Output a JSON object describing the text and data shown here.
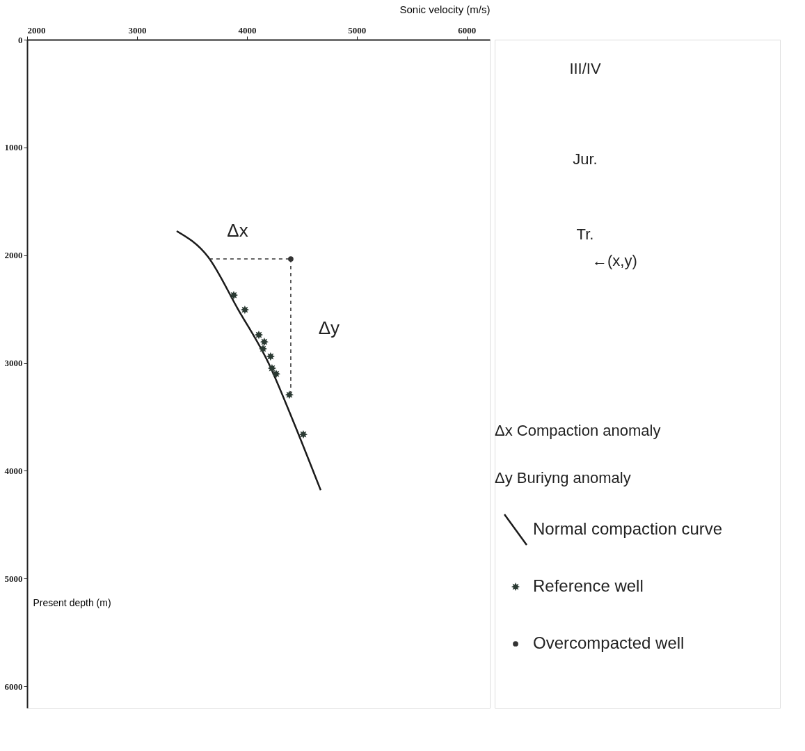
{
  "chart_data": {
    "type": "scatter",
    "xlabel": "Sonic velocity  (m/s)",
    "ylabel": "Present depth (m)",
    "xlim": [
      2000,
      6210
    ],
    "xticks": [
      2000,
      3000,
      4000,
      5000,
      6000
    ],
    "ylim": [
      6200,
      0
    ],
    "yticks": [
      0,
      1000,
      2000,
      3000,
      4000,
      5000,
      6000
    ],
    "grid": false,
    "legend": "right",
    "series": [
      {
        "name": "Normal compaction curve",
        "type": "line",
        "color": "#1a1a1a",
        "marker": "none",
        "line_style": "solid",
        "x": [
          3361,
          3646,
          3918,
          4196,
          4405,
          4671
        ],
        "values": [
          1776,
          2015,
          2500,
          3000,
          3500,
          4180
        ]
      },
      {
        "type": "line",
        "color": "#333333",
        "marker": "none",
        "line_style": "dashed",
        "x": [
          3658,
          4399
        ],
        "values": [
          2035,
          2035
        ]
      },
      {
        "type": "line",
        "color": "#333333",
        "marker": "none",
        "line_style": "dashed",
        "x": [
          4399,
          4399
        ],
        "values": [
          2035,
          3320
        ]
      },
      {
        "name": "Reference well",
        "marker": "star",
        "color": "#2b3a33",
        "x": [
          3880,
          3981,
          4108,
          4158,
          4146,
          4215,
          4228,
          4266,
          4386,
          4513
        ],
        "values": [
          2371,
          2506,
          2739,
          2804,
          2868,
          2939,
          3049,
          3101,
          3295,
          3663
        ]
      },
      {
        "name": "Overcompacted well",
        "marker": "circle",
        "color": "#333333",
        "x": [
          4399
        ],
        "values": [
          2035
        ]
      }
    ],
    "annotations": [
      {
        "text": "Δx",
        "x": 4029,
        "y": 2035
      },
      {
        "text": "Δy",
        "x": 4399,
        "y": 2680
      },
      "III/IV",
      "Jur.",
      "Tr.",
      "←(x,y)",
      "Δx Compaction anomaly",
      "Δy Buriyng anomaly"
    ]
  }
}
